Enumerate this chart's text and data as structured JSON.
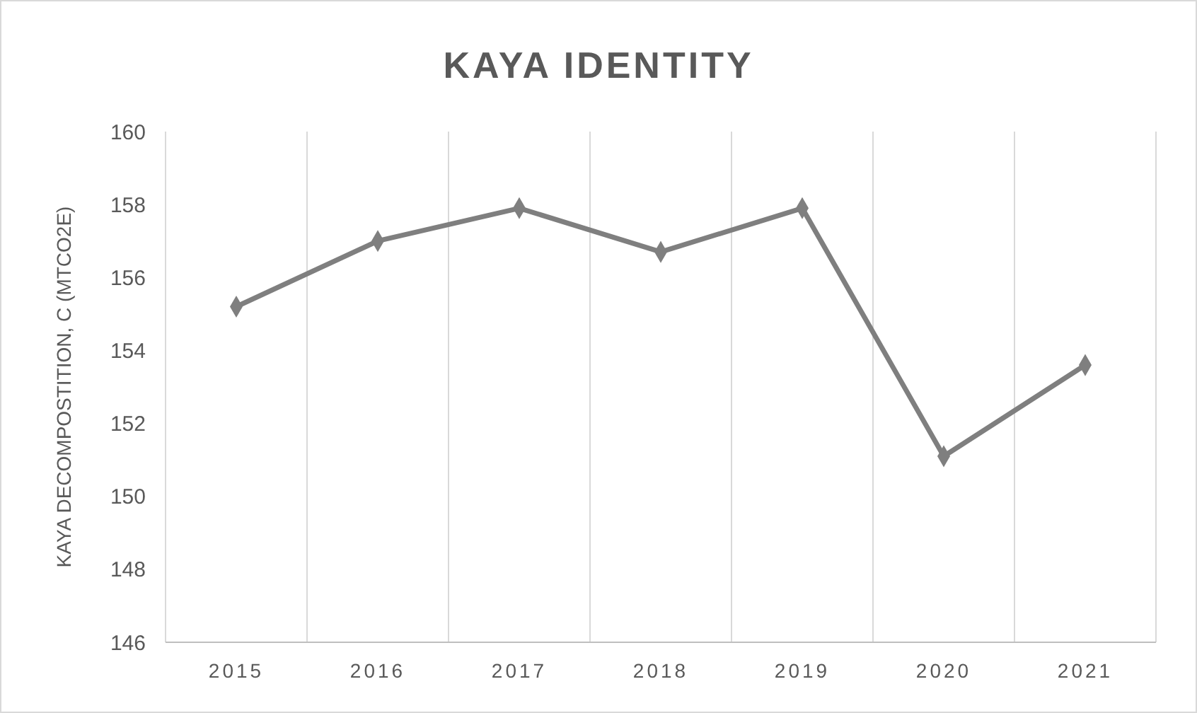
{
  "chart_data": {
    "type": "line",
    "title": "KAYA IDENTITY",
    "ylabel": "KAYA DECOMPOSTITION, C (MTCO2E)",
    "categories": [
      "2015",
      "2016",
      "2017",
      "2018",
      "2019",
      "2020",
      "2021"
    ],
    "series": [
      {
        "color": "#7f7f7f",
        "values": [
          155.2,
          157.0,
          157.9,
          156.7,
          157.9,
          151.1,
          153.6
        ]
      }
    ],
    "ylim": [
      146,
      160
    ],
    "yticks": [
      146,
      148,
      150,
      152,
      154,
      156,
      158,
      160
    ],
    "grid": "x",
    "marker": "diamond",
    "line_style": "solid"
  }
}
